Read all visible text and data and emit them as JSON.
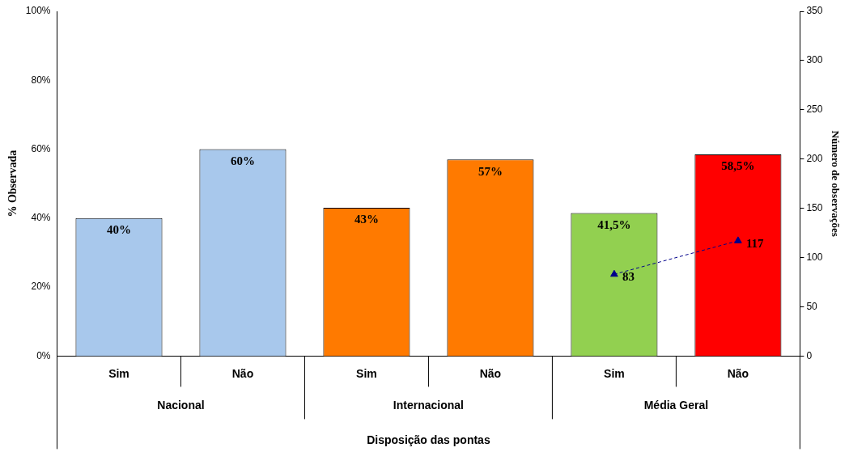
{
  "chart_data": {
    "type": "bar",
    "xlabel": "Disposição das pontas",
    "ylabel": "% Observada",
    "y2label": "Número de observações",
    "categories": [
      "Sim",
      "Não",
      "Sim",
      "Não",
      "Sim",
      "Não"
    ],
    "annotations": [
      "Nacional",
      "Internacional",
      "Média Geral"
    ],
    "series": [
      {
        "colors": [
          "#a8c8ec",
          "#a8c8ec",
          "#ff7a00",
          "#ff7a00",
          "#92d050",
          "#ff0000"
        ],
        "values": [
          40,
          60,
          43,
          57,
          41.5,
          58.5
        ],
        "value_labels": [
          "40%",
          "60%",
          "43%",
          "57%",
          "41,5%",
          "58,5%"
        ]
      },
      {
        "type": "line",
        "axis": "y2",
        "color": "#00008b",
        "marker": "triangle",
        "line_style": "dashed",
        "values": [
          null,
          null,
          null,
          null,
          83,
          117
        ],
        "value_labels": [
          null,
          null,
          null,
          null,
          "83",
          "117"
        ]
      }
    ],
    "ylim": [
      0,
      100
    ],
    "yticks": [
      {
        "value": 0,
        "label": "0%"
      },
      {
        "value": 20,
        "label": "20%"
      },
      {
        "value": 40,
        "label": "40%"
      },
      {
        "value": 60,
        "label": "60%"
      },
      {
        "value": 80,
        "label": "80%"
      },
      {
        "value": 100,
        "label": "100%"
      }
    ],
    "y2lim": [
      0,
      350
    ],
    "y2ticks": [
      0,
      50,
      100,
      150,
      200,
      250,
      300,
      350
    ],
    "grid": false,
    "legend": false
  }
}
